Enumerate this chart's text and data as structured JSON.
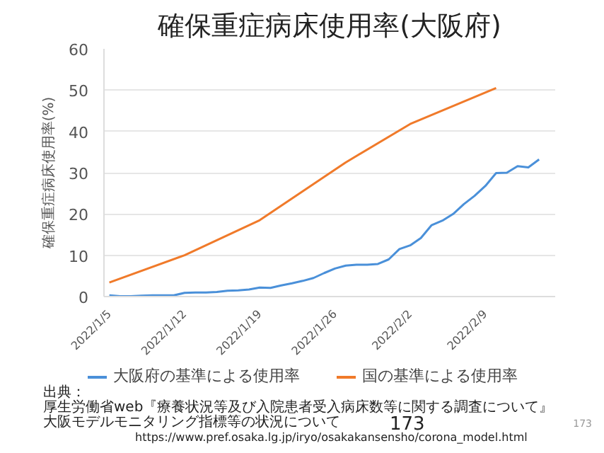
{
  "chart_data": {
    "type": "line",
    "title": "確保重症病床使用率(大阪府)",
    "ylabel": "確保重症病床使用率(%)",
    "xlim": [
      "2022-01-04T12:00",
      "2022-02-15T12:00"
    ],
    "ylim": [
      0,
      60
    ],
    "yticks": [
      0,
      10,
      20,
      30,
      40,
      50,
      60
    ],
    "xticks": [
      {
        "value": "2022-01-05",
        "label": "2022/1/5"
      },
      {
        "value": "2022-01-12",
        "label": "2022/1/12"
      },
      {
        "value": "2022-01-19",
        "label": "2022/1/19"
      },
      {
        "value": "2022-01-26",
        "label": "2022/1/26"
      },
      {
        "value": "2022-02-02",
        "label": "2022/2/2"
      },
      {
        "value": "2022-02-09",
        "label": "2022/2/9"
      }
    ],
    "grid": "y",
    "legend": "bottom",
    "line_style": "solid",
    "series": [
      {
        "name": "大阪府の基準による使用率",
        "color": "#4a90d9",
        "x": [
          "2022-01-05",
          "2022-01-06",
          "2022-01-07",
          "2022-01-08",
          "2022-01-09",
          "2022-01-10",
          "2022-01-11",
          "2022-01-12",
          "2022-01-13",
          "2022-01-14",
          "2022-01-15",
          "2022-01-16",
          "2022-01-17",
          "2022-01-18",
          "2022-01-19",
          "2022-01-20",
          "2022-01-21",
          "2022-01-22",
          "2022-01-23",
          "2022-01-24",
          "2022-01-25",
          "2022-01-26",
          "2022-01-27",
          "2022-01-28",
          "2022-01-29",
          "2022-01-30",
          "2022-01-31",
          "2022-02-01",
          "2022-02-02",
          "2022-02-03",
          "2022-02-04",
          "2022-02-05",
          "2022-02-06",
          "2022-02-07",
          "2022-02-08",
          "2022-02-09",
          "2022-02-10",
          "2022-02-11",
          "2022-02-12",
          "2022-02-13",
          "2022-02-14"
        ],
        "values": [
          0.3,
          0.1,
          0.1,
          0.2,
          0.3,
          0.3,
          0.3,
          0.9,
          1.0,
          1.0,
          1.1,
          1.4,
          1.5,
          1.7,
          2.2,
          2.1,
          2.7,
          3.2,
          3.8,
          4.5,
          5.7,
          6.8,
          7.5,
          7.7,
          7.7,
          7.9,
          9.0,
          11.5,
          12.4,
          14.2,
          17.3,
          18.4,
          20.0,
          22.4,
          24.4,
          26.8,
          29.9,
          30.0,
          31.6,
          31.3,
          33.2
        ]
      },
      {
        "name": "国の基準による使用率",
        "color": "#f07a2a",
        "x": [
          "2022-01-05",
          "2022-01-12",
          "2022-01-19",
          "2022-01-27",
          "2022-02-02",
          "2022-02-10"
        ],
        "values": [
          3.4,
          10.0,
          18.5,
          32.5,
          41.8,
          50.5
        ]
      }
    ],
    "annotations": [
      "出典：",
      "厚生労働省web『療養状況等及び入院患者受入病床数等に関する調査について』",
      "大阪モデルモニタリング指標等の状況について",
      "https://www.pref.osaka.lg.jp/iryo/osakakansensho/corona_model.html",
      "173",
      "173"
    ]
  }
}
